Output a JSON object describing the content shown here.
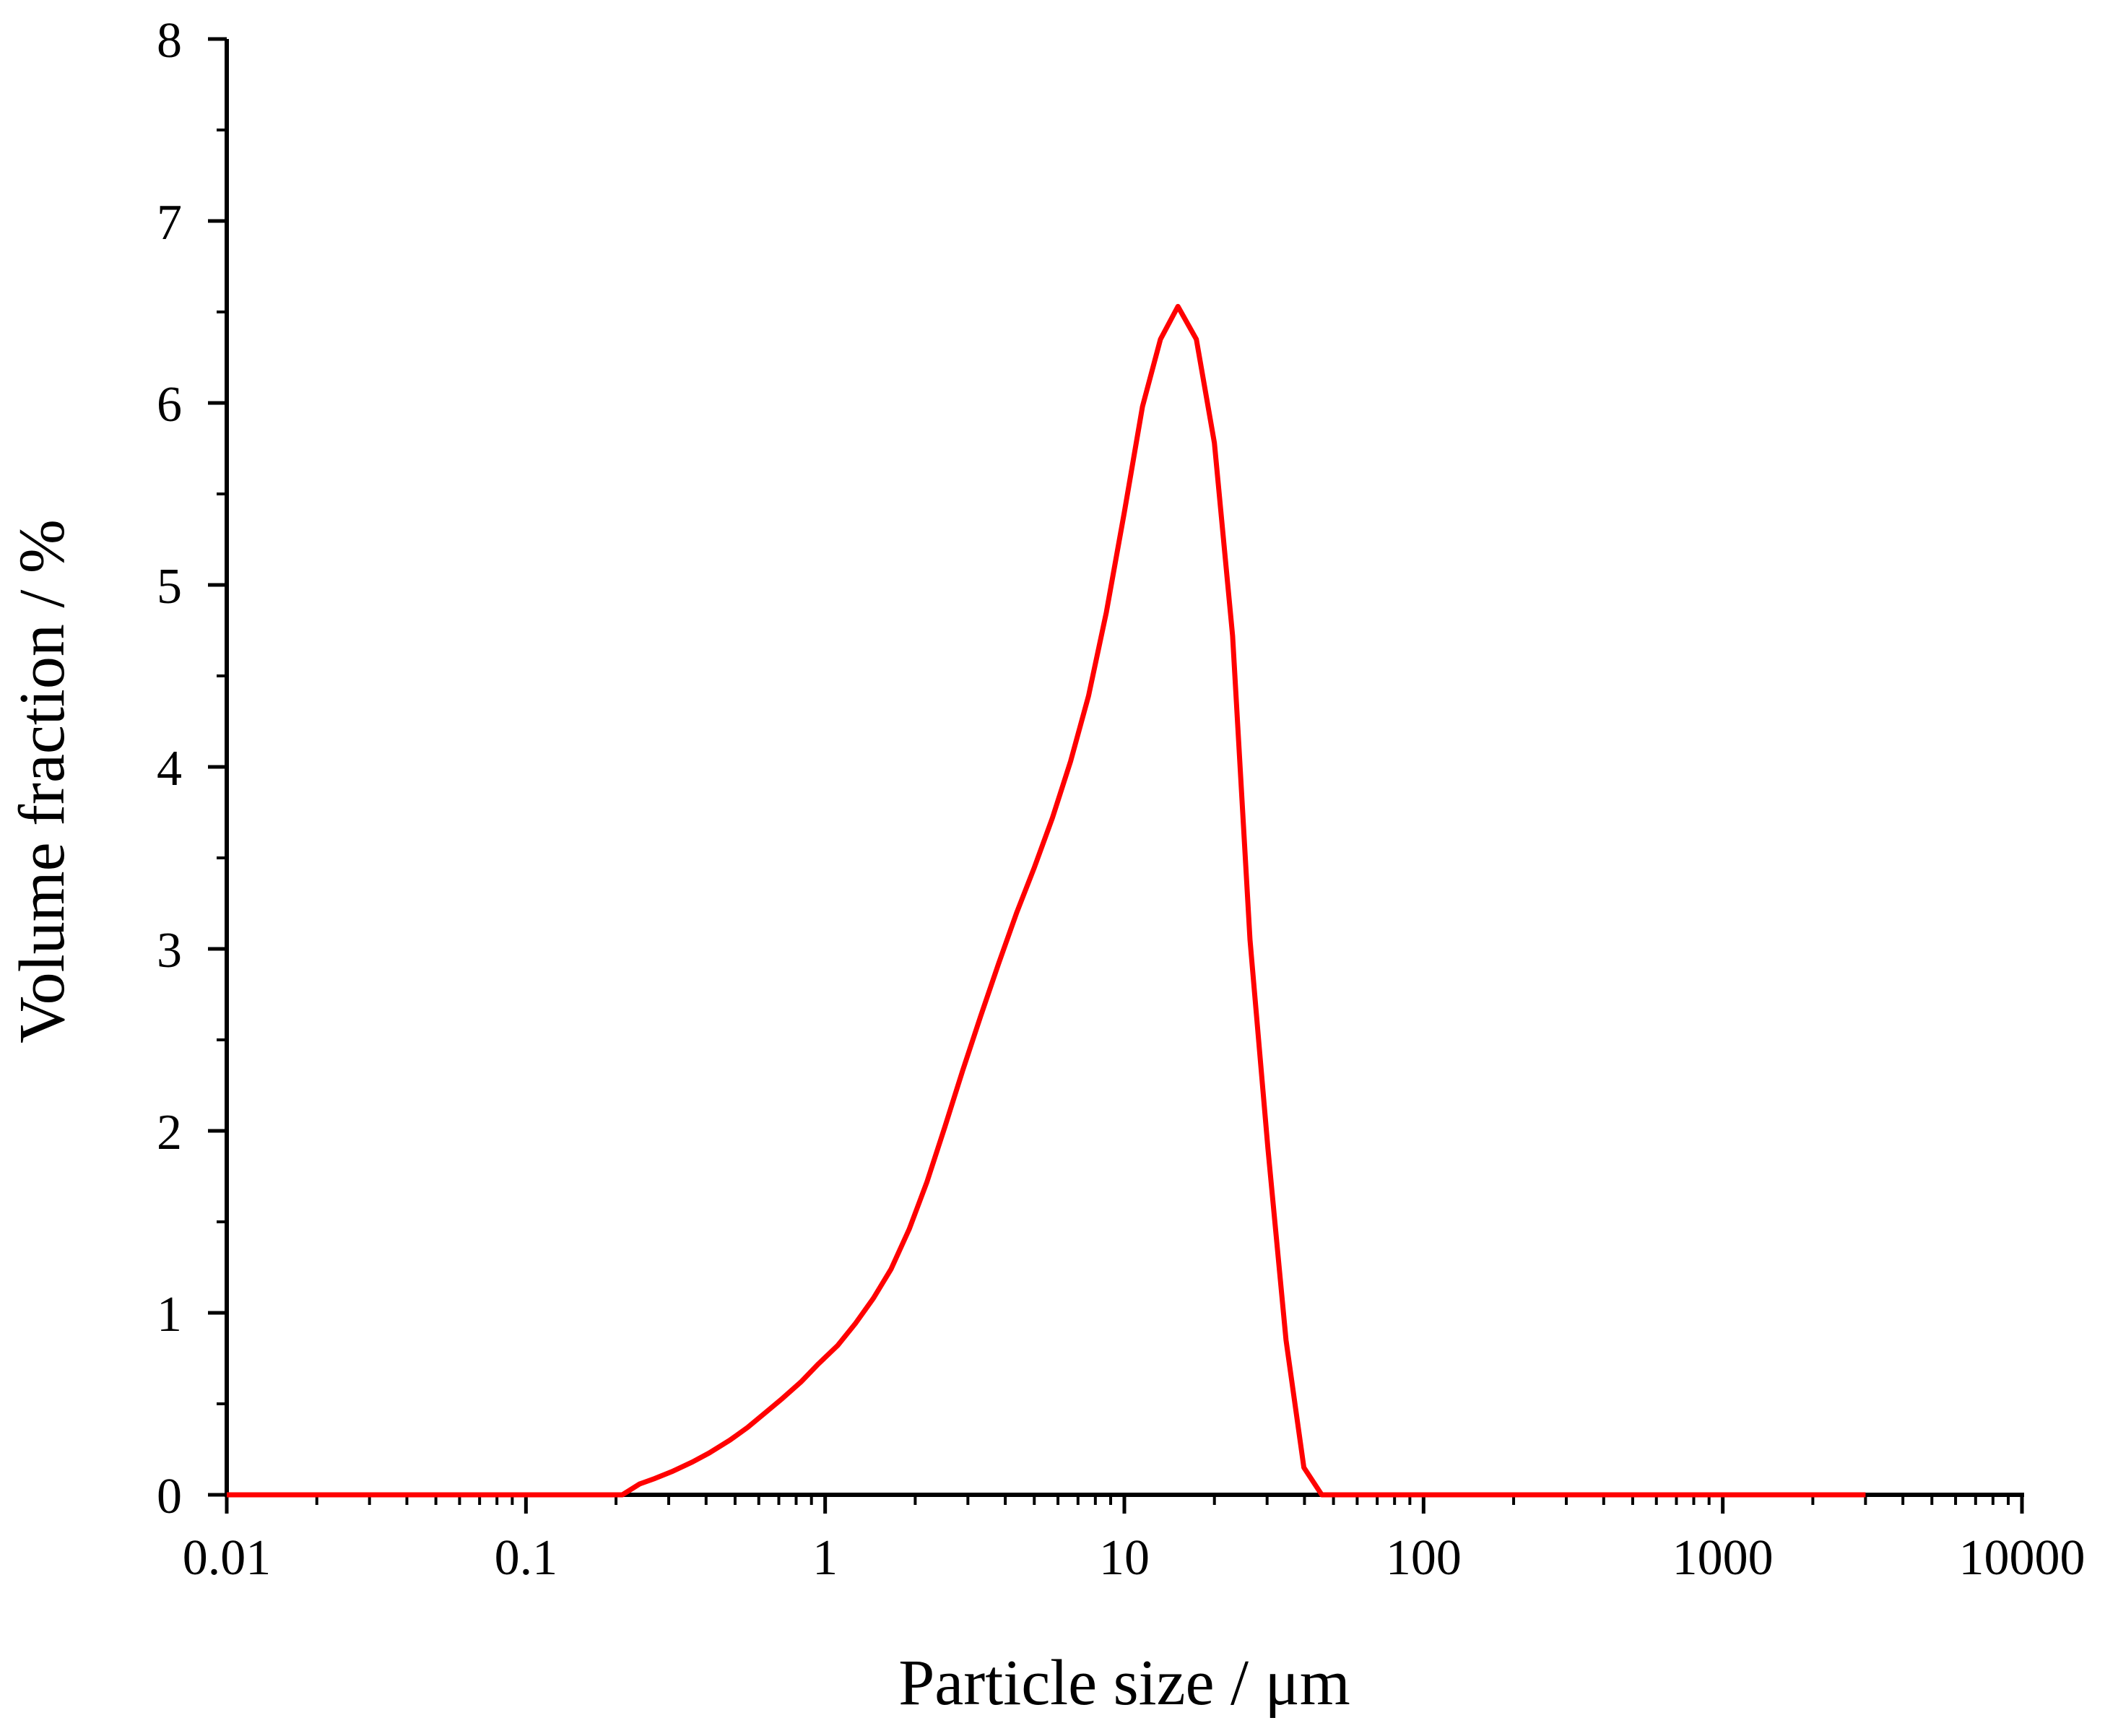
{
  "chart_data": {
    "type": "line",
    "xlabel": "Particle size / μm",
    "ylabel": "Volume fraction / %",
    "x_scale": "log",
    "xlim": [
      0.01,
      10000
    ],
    "ylim": [
      0,
      8
    ],
    "x_ticks": [
      0.01,
      0.1,
      1,
      10,
      100,
      1000,
      10000
    ],
    "x_tick_labels": [
      "0.01",
      "0.1",
      "1",
      "10",
      "100",
      "1000",
      "10000"
    ],
    "y_ticks": [
      0,
      1,
      2,
      3,
      4,
      5,
      6,
      7,
      8
    ],
    "y_tick_labels": [
      "0",
      "1",
      "2",
      "3",
      "4",
      "5",
      "6",
      "7",
      "8"
    ],
    "grid": false,
    "line_color": "#ff0000",
    "series": [
      {
        "x": [
          0.01,
          0.1,
          0.21,
          0.24,
          0.27,
          0.31,
          0.36,
          0.41,
          0.48,
          0.55,
          0.63,
          0.72,
          0.83,
          0.95,
          1.1,
          1.26,
          1.45,
          1.66,
          1.91,
          2.19,
          2.51,
          2.88,
          3.31,
          3.8,
          4.37,
          5.01,
          5.75,
          6.61,
          7.59,
          8.71,
          10.0,
          11.5,
          13.2,
          15.1,
          17.4,
          20.0,
          23.0,
          26.3,
          30.2,
          34.7,
          39.8,
          45.7,
          52.5,
          100,
          1000,
          3000
        ],
        "y": [
          0,
          0,
          0,
          0.06,
          0.09,
          0.13,
          0.18,
          0.23,
          0.3,
          0.37,
          0.45,
          0.53,
          0.62,
          0.72,
          0.82,
          0.94,
          1.08,
          1.24,
          1.46,
          1.72,
          2.02,
          2.33,
          2.63,
          2.92,
          3.2,
          3.45,
          3.72,
          4.03,
          4.39,
          4.85,
          5.4,
          5.98,
          6.35,
          6.53,
          6.35,
          5.78,
          4.72,
          3.05,
          1.9,
          0.85,
          0.15,
          0,
          0,
          0,
          0,
          0
        ]
      }
    ]
  }
}
